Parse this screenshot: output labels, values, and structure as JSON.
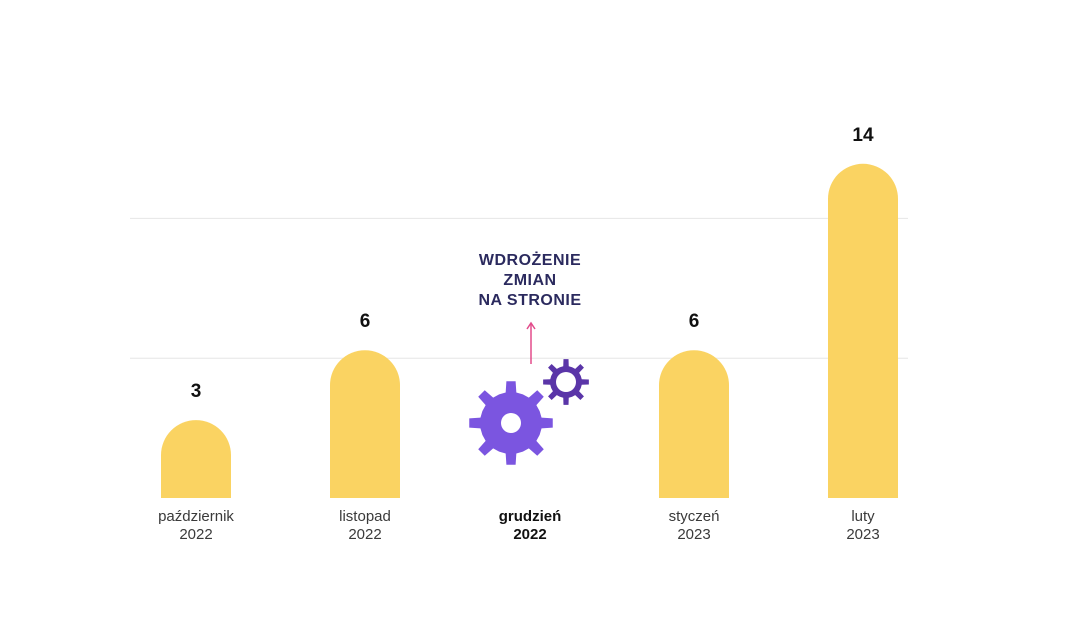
{
  "chart_data": {
    "type": "bar",
    "categories": [
      {
        "line1": "październik",
        "line2": "2022",
        "bold": false
      },
      {
        "line1": "listopad",
        "line2": "2022",
        "bold": false
      },
      {
        "line1": "grudzień",
        "line2": "2022",
        "bold": true
      },
      {
        "line1": "styczeń",
        "line2": "2023",
        "bold": false
      },
      {
        "line1": "luty",
        "line2": "2023",
        "bold": false
      }
    ],
    "values": [
      3,
      6,
      null,
      6,
      14
    ],
    "value_labels": [
      "3",
      "6",
      "",
      "6",
      "14"
    ],
    "ylim": [
      0,
      14
    ],
    "gridlines": [
      6,
      12
    ],
    "annotation": {
      "category_index": 2,
      "lines": [
        "WDROŻENIE",
        "ZMIAN",
        "NA STRONIE"
      ],
      "icon": "gears-icon"
    },
    "colors": {
      "bar": "#fad362",
      "annotation_text": "#2b2a5e",
      "arrow": "#e24c8b",
      "gear_large": "#7b55e0",
      "gear_small": "#5a35a8"
    }
  }
}
